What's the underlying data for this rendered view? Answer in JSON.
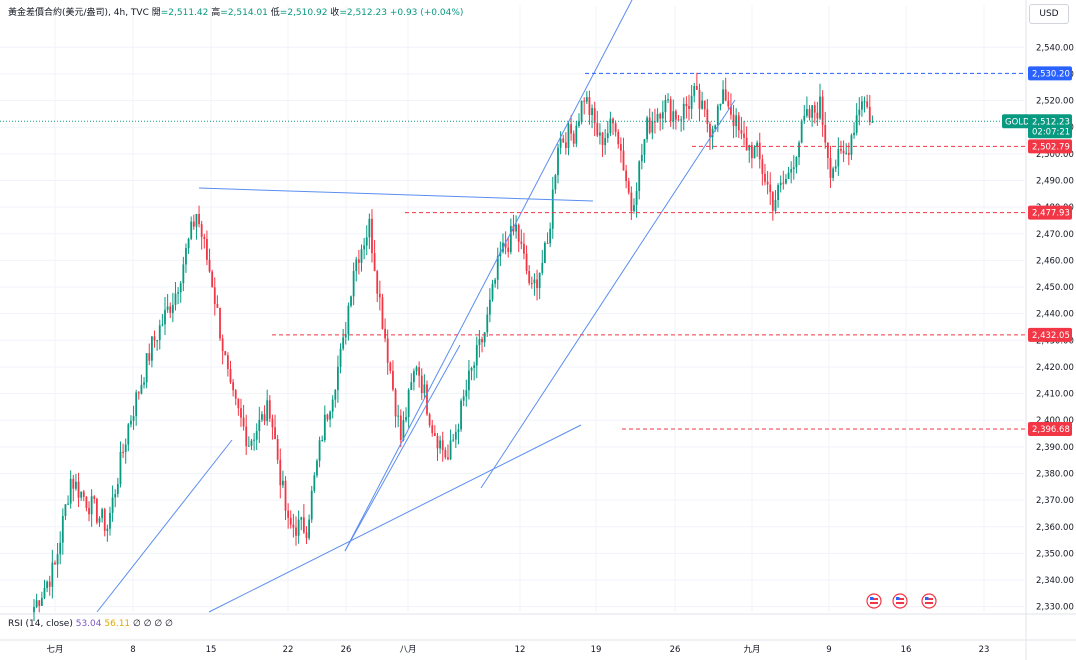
{
  "header": {
    "symbol": "黃金差價合約(美元/盎司), 4h, TVC",
    "open_label": "開",
    "open": "=2,511.42",
    "high_label": "高",
    "high": "=2,514.01",
    "low_label": "低",
    "low": "=2,510.92",
    "close_label": "收",
    "close": "=2,512.23",
    "change": "+0.93 (+0.04%)"
  },
  "currency": "USD",
  "rsi": {
    "label": "RSI (14, close)",
    "value1": "53.04",
    "value2": "56.11",
    "extras": "∅ ∅ ∅ ∅"
  },
  "price_tags": {
    "symbol_tag": "GOLD",
    "last_price": "2,512.23",
    "countdown": "02:07:21",
    "level_1": "2,530.20",
    "level_2": "2,502.79",
    "level_3": "2,477.93",
    "level_4": "2,432.05",
    "level_5": "2,396.68"
  },
  "colors": {
    "up": "#089981",
    "down": "#f23645",
    "trendline": "#5b8def",
    "level_blue": "#2962ff",
    "level_red": "#f23645",
    "last_price_bg": "#089981"
  },
  "chart_data": {
    "type": "candlestick",
    "title": "黃金差價合約(美元/盎司)",
    "interval": "4h",
    "ylim": [
      2328,
      2548
    ],
    "y_ticks": [
      2330,
      2340,
      2350,
      2360,
      2370,
      2380,
      2390,
      2400,
      2410,
      2420,
      2430,
      2440,
      2450,
      2460,
      2470,
      2480,
      2490,
      2500,
      2510,
      2520,
      2530,
      2540
    ],
    "x_ticks": [
      "七月",
      "8",
      "15",
      "22",
      "26",
      "八月",
      "12",
      "19",
      "26",
      "九月",
      "9",
      "16",
      "23"
    ],
    "anchors": [
      {
        "bar": 0,
        "price": 2330
      },
      {
        "bar": 8,
        "price": 2345
      },
      {
        "bar": 14,
        "price": 2378
      },
      {
        "bar": 20,
        "price": 2370
      },
      {
        "bar": 28,
        "price": 2360
      },
      {
        "bar": 36,
        "price": 2398
      },
      {
        "bar": 45,
        "price": 2428
      },
      {
        "bar": 54,
        "price": 2448
      },
      {
        "bar": 62,
        "price": 2478
      },
      {
        "bar": 68,
        "price": 2452
      },
      {
        "bar": 75,
        "price": 2410
      },
      {
        "bar": 82,
        "price": 2392
      },
      {
        "bar": 90,
        "price": 2405
      },
      {
        "bar": 97,
        "price": 2360
      },
      {
        "bar": 104,
        "price": 2360
      },
      {
        "bar": 110,
        "price": 2395
      },
      {
        "bar": 118,
        "price": 2428
      },
      {
        "bar": 122,
        "price": 2458
      },
      {
        "bar": 128,
        "price": 2473
      },
      {
        "bar": 133,
        "price": 2438
      },
      {
        "bar": 140,
        "price": 2393
      },
      {
        "bar": 146,
        "price": 2422
      },
      {
        "bar": 152,
        "price": 2398
      },
      {
        "bar": 158,
        "price": 2385
      },
      {
        "bar": 166,
        "price": 2415
      },
      {
        "bar": 172,
        "price": 2433
      },
      {
        "bar": 178,
        "price": 2462
      },
      {
        "bar": 184,
        "price": 2472
      },
      {
        "bar": 190,
        "price": 2448
      },
      {
        "bar": 196,
        "price": 2465
      },
      {
        "bar": 200,
        "price": 2505
      },
      {
        "bar": 206,
        "price": 2508
      },
      {
        "bar": 210,
        "price": 2522
      },
      {
        "bar": 216,
        "price": 2505
      },
      {
        "bar": 222,
        "price": 2512
      },
      {
        "bar": 228,
        "price": 2480
      },
      {
        "bar": 234,
        "price": 2510
      },
      {
        "bar": 240,
        "price": 2519
      },
      {
        "bar": 246,
        "price": 2514
      },
      {
        "bar": 252,
        "price": 2522
      },
      {
        "bar": 258,
        "price": 2510
      },
      {
        "bar": 264,
        "price": 2522
      },
      {
        "bar": 270,
        "price": 2505
      },
      {
        "bar": 276,
        "price": 2500
      },
      {
        "bar": 282,
        "price": 2482
      },
      {
        "bar": 288,
        "price": 2492
      },
      {
        "bar": 294,
        "price": 2512
      },
      {
        "bar": 300,
        "price": 2518
      },
      {
        "bar": 304,
        "price": 2495
      },
      {
        "bar": 310,
        "price": 2500
      },
      {
        "bar": 316,
        "price": 2522
      },
      {
        "bar": 320,
        "price": 2512
      }
    ]
  }
}
